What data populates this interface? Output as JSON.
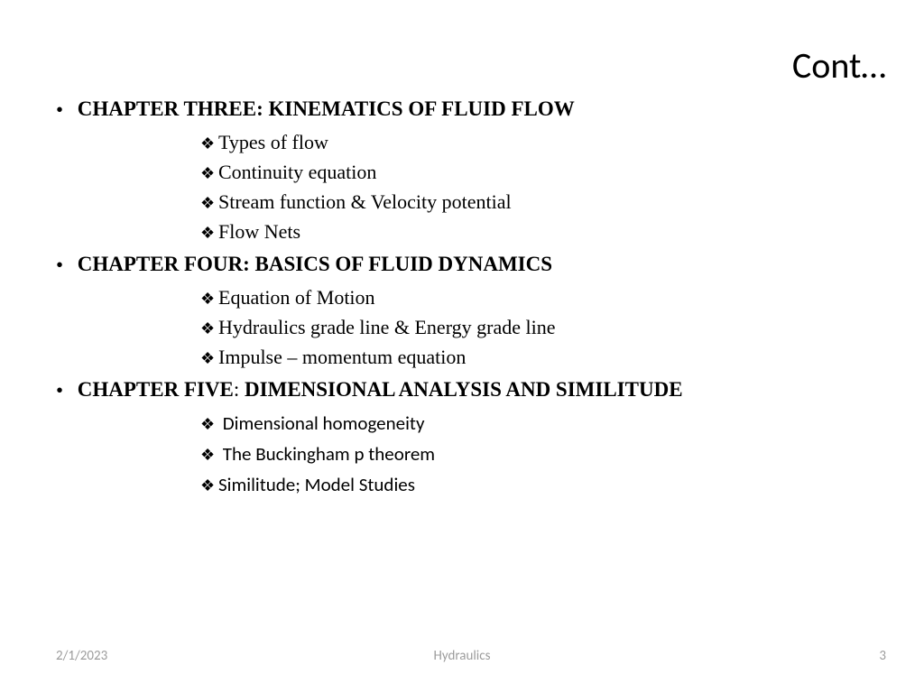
{
  "title": "Cont…",
  "chapters": [
    {
      "prefix": "CHAPTER THREE",
      "sep": ": ",
      "name": "KINEMATICS OF FLUID FLOW",
      "sep_bold": true,
      "items": [
        {
          "text": "Types of flow",
          "sans": false
        },
        {
          "text": "Continuity equation",
          "sans": false
        },
        {
          "text": "Stream function & Velocity potential",
          "sans": false
        },
        {
          "text": "Flow Nets",
          "sans": false
        }
      ]
    },
    {
      "prefix": "CHAPTER FOUR",
      "sep": ": ",
      "name": "BASICS OF FLUID DYNAMICS",
      "sep_bold": true,
      "items": [
        {
          "text": "Equation of Motion",
          "sans": false
        },
        {
          "text": "Hydraulics grade line & Energy grade line",
          "sans": false
        },
        {
          "text": "Impulse – momentum equation",
          "sans": false
        }
      ]
    },
    {
      "prefix": "CHAPTER FIVE",
      "sep": ": ",
      "name": "DIMENSIONAL ANALYSIS AND SIMILITUDE",
      "sep_bold": false,
      "items": [
        {
          "text": " Dimensional homogeneity",
          "sans": true
        },
        {
          "text": " The Buckingham p theorem",
          "sans": true
        },
        {
          "text": "Similitude; Model Studies",
          "sans": true
        }
      ]
    }
  ],
  "bullets": {
    "chapter": "•",
    "sub": "❖"
  },
  "footer": {
    "date": "2/1/2023",
    "subject": "Hydraulics",
    "page": "3"
  },
  "style": {
    "title_fontsize": 40,
    "chapter_fontsize": 23,
    "sub_fontsize": 22,
    "footer_fontsize": 15,
    "text_color": "#000000",
    "footer_color": "#9c9c9c",
    "background_color": "#ffffff"
  }
}
